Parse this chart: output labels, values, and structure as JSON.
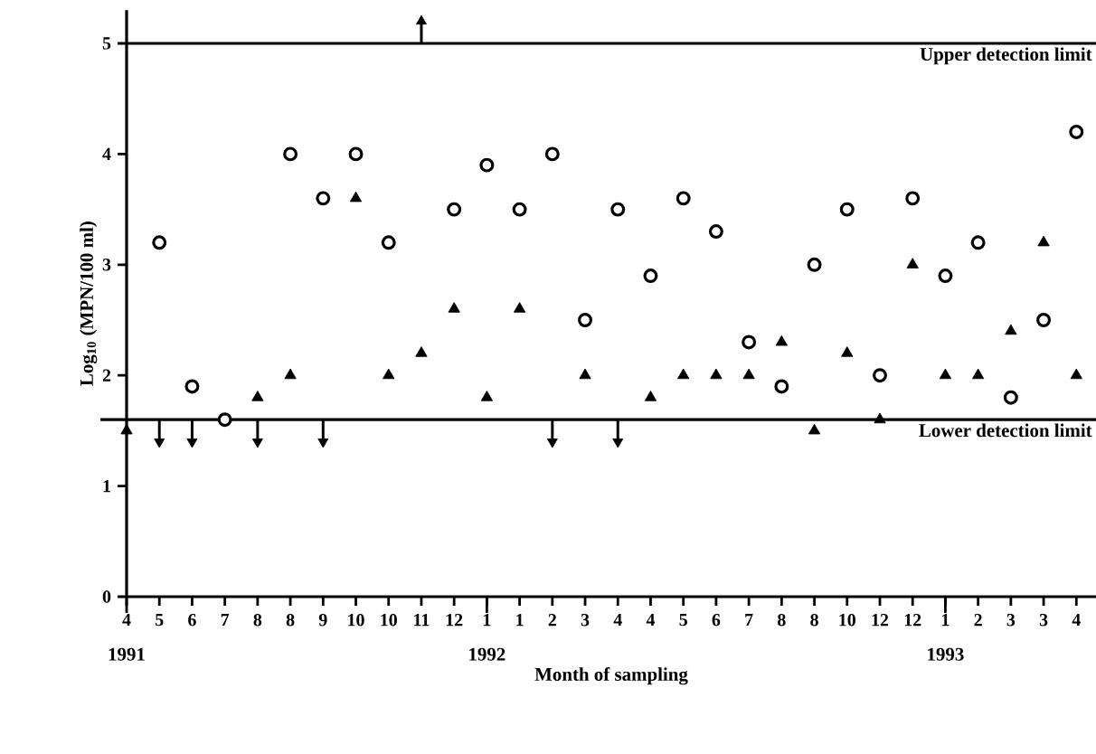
{
  "chart_data": {
    "type": "scatter",
    "xlabel": "Month of sampling",
    "ylabel": "Log$_{10}$ (MPN/100 ml)",
    "categories": [
      "4",
      "5",
      "6",
      "7",
      "8",
      "8",
      "9",
      "10",
      "10",
      "11",
      "12",
      "1",
      "1",
      "2",
      "3",
      "4",
      "4",
      "5",
      "6",
      "7",
      "8",
      "8",
      "10",
      "12",
      "12",
      "1",
      "2",
      "3",
      "3",
      "4"
    ],
    "ylim": [
      0,
      5.3
    ],
    "yticks": [
      0,
      1,
      2,
      3,
      4,
      5
    ],
    "series": [
      {
        "type": "scatter",
        "marker": "circle",
        "color": "#000000",
        "values": [
          null,
          3.2,
          1.9,
          1.6,
          null,
          4.0,
          3.6,
          4.0,
          3.2,
          null,
          3.5,
          3.9,
          3.5,
          4.0,
          2.5,
          3.5,
          2.9,
          3.6,
          3.3,
          2.3,
          1.9,
          3.0,
          3.5,
          2.0,
          3.6,
          2.9,
          3.2,
          1.8,
          2.5,
          4.2
        ]
      },
      {
        "type": "scatter",
        "marker": "triangle",
        "color": "#000000",
        "values": [
          1.5,
          null,
          null,
          null,
          1.8,
          2.0,
          null,
          3.6,
          2.0,
          2.2,
          2.6,
          1.8,
          2.6,
          null,
          2.0,
          null,
          1.8,
          2.0,
          2.0,
          2.0,
          2.3,
          1.5,
          2.2,
          1.6,
          3.0,
          2.0,
          2.0,
          2.4,
          3.2,
          2.0
        ]
      },
      {
        "type": "scatter",
        "marker": "triangle",
        "color": "#000000",
        "values": [
          null,
          1.4,
          1.4,
          null,
          1.4,
          null,
          1.4,
          null,
          null,
          null,
          null,
          null,
          null,
          1.4,
          null,
          1.4,
          null,
          null,
          null,
          null,
          null,
          null,
          null,
          null,
          null,
          null,
          null,
          null,
          null,
          null
        ],
        "errors": [
          null,
          [
            1.4,
            1.6
          ],
          [
            1.4,
            1.6
          ],
          null,
          [
            1.4,
            1.6
          ],
          null,
          [
            1.4,
            1.6
          ],
          null,
          null,
          null,
          null,
          null,
          null,
          [
            1.4,
            1.6
          ],
          null,
          [
            1.4,
            1.6
          ],
          null,
          null,
          null,
          null,
          null,
          null,
          null,
          null,
          null,
          null,
          null,
          null,
          null,
          null
        ]
      },
      {
        "type": "scatter",
        "marker": "triangle",
        "color": "#000000",
        "values": [
          null,
          null,
          null,
          null,
          null,
          null,
          null,
          null,
          null,
          5.2,
          null,
          null,
          null,
          null,
          null,
          null,
          null,
          null,
          null,
          null,
          null,
          null,
          null,
          null,
          null,
          null,
          null,
          null,
          null,
          null
        ],
        "errors": [
          null,
          null,
          null,
          null,
          null,
          null,
          null,
          null,
          null,
          [
            5.0,
            5.2
          ],
          null,
          null,
          null,
          null,
          null,
          null,
          null,
          null,
          null,
          null,
          null,
          null,
          null,
          null,
          null,
          null,
          null,
          null,
          null,
          null
        ]
      }
    ],
    "ref_lines": [
      {
        "axis": "y",
        "value": 5,
        "label": "Upper detection limit"
      },
      {
        "axis": "y",
        "value": 1.6,
        "label": "Lower detection limit"
      }
    ],
    "annotations": [
      "1991",
      "1992",
      "1993"
    ]
  }
}
